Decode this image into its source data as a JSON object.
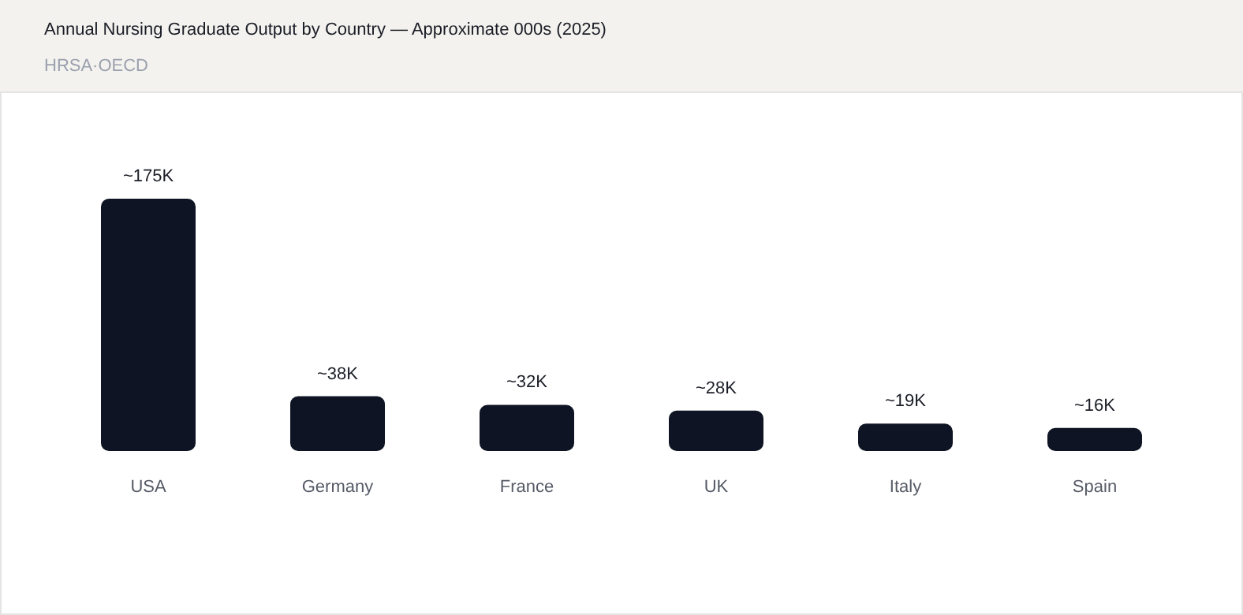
{
  "chart_data": {
    "type": "bar",
    "title": "Annual Nursing Graduate Output by Country — Approximate 000s (2025)",
    "subtitle": "HRSA·OECD",
    "categories": [
      "USA",
      "Germany",
      "France",
      "UK",
      "Italy",
      "Spain"
    ],
    "values": [
      175,
      38,
      32,
      28,
      19,
      16
    ],
    "value_labels": [
      "~175K",
      "~38K",
      "~32K",
      "~28K",
      "~19K",
      "~16K"
    ],
    "color": "#0f1424"
  }
}
